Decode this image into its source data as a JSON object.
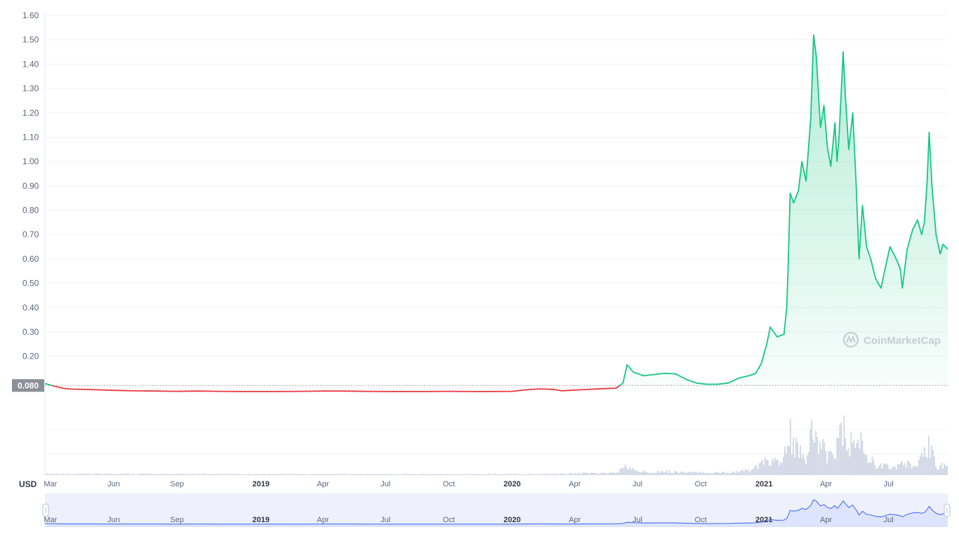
{
  "chart_data": {
    "type": "area",
    "currency_label": "USD",
    "baseline_value": 0.08,
    "baseline_label": "0.080",
    "watermark": "CoinMarketCap",
    "ylim": [
      0,
      1.6
    ],
    "y_ticks": [
      "0.20",
      "0.30",
      "0.40",
      "0.50",
      "0.60",
      "0.70",
      "0.80",
      "0.90",
      "1.00",
      "1.10",
      "1.20",
      "1.30",
      "1.40",
      "1.50",
      "1.60"
    ],
    "x_range": [
      "2018-02-21",
      "2021-09-25"
    ],
    "x_ticks": [
      {
        "date": "2018-03-01",
        "label": "Mar",
        "year": false
      },
      {
        "date": "2018-06-01",
        "label": "Jun",
        "year": false
      },
      {
        "date": "2018-09-01",
        "label": "Sep",
        "year": false
      },
      {
        "date": "2019-01-01",
        "label": "2019",
        "year": true
      },
      {
        "date": "2019-04-01",
        "label": "Apr",
        "year": false
      },
      {
        "date": "2019-07-01",
        "label": "Jul",
        "year": false
      },
      {
        "date": "2019-10-01",
        "label": "Oct",
        "year": false
      },
      {
        "date": "2020-01-01",
        "label": "2020",
        "year": true
      },
      {
        "date": "2020-04-01",
        "label": "Apr",
        "year": false
      },
      {
        "date": "2020-07-01",
        "label": "Jul",
        "year": false
      },
      {
        "date": "2020-10-01",
        "label": "Oct",
        "year": false
      },
      {
        "date": "2021-01-01",
        "label": "2021",
        "year": true
      },
      {
        "date": "2021-04-01",
        "label": "Apr",
        "year": false
      },
      {
        "date": "2021-07-01",
        "label": "Jul",
        "year": false
      }
    ],
    "colors": {
      "up": "#16c784",
      "down": "#ea3943",
      "volume": "#cfd6e4",
      "navigator_line": "#3861fb",
      "navigator_fill": "#dde4fd",
      "baseline_label_bg": "#8a8f98"
    },
    "series": [
      {
        "values": [
          [
            "2018-02-21",
            0.088
          ],
          [
            "2018-03-01",
            0.082
          ],
          [
            "2018-03-10",
            0.075
          ],
          [
            "2018-03-20",
            0.068
          ],
          [
            "2018-04-01",
            0.065
          ],
          [
            "2018-04-20",
            0.064
          ],
          [
            "2018-05-10",
            0.062
          ],
          [
            "2018-06-01",
            0.06
          ],
          [
            "2018-07-01",
            0.058
          ],
          [
            "2018-08-01",
            0.057
          ],
          [
            "2018-09-01",
            0.056
          ],
          [
            "2018-10-01",
            0.057
          ],
          [
            "2018-11-01",
            0.056
          ],
          [
            "2018-12-01",
            0.055
          ],
          [
            "2019-01-01",
            0.055
          ],
          [
            "2019-02-01",
            0.055
          ],
          [
            "2019-03-01",
            0.056
          ],
          [
            "2019-04-01",
            0.057
          ],
          [
            "2019-05-01",
            0.057
          ],
          [
            "2019-06-01",
            0.056
          ],
          [
            "2019-07-01",
            0.055
          ],
          [
            "2019-08-01",
            0.055
          ],
          [
            "2019-09-01",
            0.055
          ],
          [
            "2019-10-01",
            0.056
          ],
          [
            "2019-11-01",
            0.055
          ],
          [
            "2019-12-01",
            0.055
          ],
          [
            "2020-01-01",
            0.056
          ],
          [
            "2020-01-20",
            0.062
          ],
          [
            "2020-02-10",
            0.066
          ],
          [
            "2020-03-01",
            0.064
          ],
          [
            "2020-03-13",
            0.058
          ],
          [
            "2020-03-25",
            0.06
          ],
          [
            "2020-04-15",
            0.063
          ],
          [
            "2020-05-10",
            0.067
          ],
          [
            "2020-05-31",
            0.069
          ],
          [
            "2020-06-10",
            0.09
          ],
          [
            "2020-06-16",
            0.165
          ],
          [
            "2020-06-25",
            0.135
          ],
          [
            "2020-07-10",
            0.12
          ],
          [
            "2020-07-25",
            0.125
          ],
          [
            "2020-08-10",
            0.13
          ],
          [
            "2020-08-25",
            0.128
          ],
          [
            "2020-09-10",
            0.105
          ],
          [
            "2020-09-25",
            0.09
          ],
          [
            "2020-10-10",
            0.085
          ],
          [
            "2020-10-25",
            0.085
          ],
          [
            "2020-11-10",
            0.09
          ],
          [
            "2020-11-25",
            0.11
          ],
          [
            "2020-12-10",
            0.12
          ],
          [
            "2020-12-20",
            0.13
          ],
          [
            "2020-12-28",
            0.17
          ],
          [
            "2021-01-05",
            0.25
          ],
          [
            "2021-01-10",
            0.32
          ],
          [
            "2021-01-20",
            0.28
          ],
          [
            "2021-01-30",
            0.29
          ],
          [
            "2021-02-03",
            0.4
          ],
          [
            "2021-02-05",
            0.56
          ],
          [
            "2021-02-08",
            0.87
          ],
          [
            "2021-02-13",
            0.83
          ],
          [
            "2021-02-20",
            0.88
          ],
          [
            "2021-02-25",
            1.0
          ],
          [
            "2021-03-03",
            0.92
          ],
          [
            "2021-03-10",
            1.18
          ],
          [
            "2021-03-14",
            1.52
          ],
          [
            "2021-03-18",
            1.43
          ],
          [
            "2021-03-24",
            1.14
          ],
          [
            "2021-03-29",
            1.23
          ],
          [
            "2021-04-03",
            1.06
          ],
          [
            "2021-04-08",
            0.98
          ],
          [
            "2021-04-14",
            1.16
          ],
          [
            "2021-04-17",
            1.0
          ],
          [
            "2021-04-20",
            1.1
          ],
          [
            "2021-04-26",
            1.45
          ],
          [
            "2021-04-29",
            1.28
          ],
          [
            "2021-05-04",
            1.05
          ],
          [
            "2021-05-10",
            1.2
          ],
          [
            "2021-05-15",
            0.9
          ],
          [
            "2021-05-19",
            0.6
          ],
          [
            "2021-05-24",
            0.82
          ],
          [
            "2021-05-30",
            0.65
          ],
          [
            "2021-06-05",
            0.6
          ],
          [
            "2021-06-12",
            0.52
          ],
          [
            "2021-06-20",
            0.48
          ],
          [
            "2021-06-26",
            0.56
          ],
          [
            "2021-07-03",
            0.65
          ],
          [
            "2021-07-12",
            0.6
          ],
          [
            "2021-07-18",
            0.56
          ],
          [
            "2021-07-21",
            0.48
          ],
          [
            "2021-07-28",
            0.64
          ],
          [
            "2021-08-05",
            0.72
          ],
          [
            "2021-08-12",
            0.76
          ],
          [
            "2021-08-18",
            0.7
          ],
          [
            "2021-08-22",
            0.75
          ],
          [
            "2021-08-26",
            0.92
          ],
          [
            "2021-08-29",
            1.12
          ],
          [
            "2021-09-02",
            0.9
          ],
          [
            "2021-09-05",
            0.8
          ],
          [
            "2021-09-08",
            0.7
          ],
          [
            "2021-09-14",
            0.62
          ],
          [
            "2021-09-18",
            0.66
          ],
          [
            "2021-09-25",
            0.64
          ]
        ]
      }
    ],
    "volume": [
      [
        "2018-02-21",
        0.03
      ],
      [
        "2018-04-01",
        0.02
      ],
      [
        "2018-06-01",
        0.03
      ],
      [
        "2018-09-01",
        0.02
      ],
      [
        "2019-01-01",
        0.02
      ],
      [
        "2019-04-01",
        0.02
      ],
      [
        "2019-07-01",
        0.02
      ],
      [
        "2019-10-01",
        0.02
      ],
      [
        "2020-01-01",
        0.02
      ],
      [
        "2020-03-15",
        0.03
      ],
      [
        "2020-05-31",
        0.05
      ],
      [
        "2020-06-16",
        0.2
      ],
      [
        "2020-06-25",
        0.1
      ],
      [
        "2020-07-10",
        0.07
      ],
      [
        "2020-08-10",
        0.08
      ],
      [
        "2020-09-10",
        0.06
      ],
      [
        "2020-10-10",
        0.05
      ],
      [
        "2020-11-10",
        0.06
      ],
      [
        "2020-12-10",
        0.1
      ],
      [
        "2020-12-28",
        0.22
      ],
      [
        "2021-01-10",
        0.35
      ],
      [
        "2021-01-25",
        0.2
      ],
      [
        "2021-02-08",
        0.85
      ],
      [
        "2021-02-20",
        0.45
      ],
      [
        "2021-03-03",
        0.4
      ],
      [
        "2021-03-14",
        0.95
      ],
      [
        "2021-03-24",
        0.55
      ],
      [
        "2021-04-08",
        0.45
      ],
      [
        "2021-04-26",
        0.9
      ],
      [
        "2021-05-10",
        0.6
      ],
      [
        "2021-05-19",
        0.75
      ],
      [
        "2021-06-05",
        0.3
      ],
      [
        "2021-06-20",
        0.2
      ],
      [
        "2021-07-05",
        0.15
      ],
      [
        "2021-07-21",
        0.25
      ],
      [
        "2021-08-12",
        0.18
      ],
      [
        "2021-08-29",
        0.6
      ],
      [
        "2021-09-08",
        0.25
      ],
      [
        "2021-09-25",
        0.15
      ]
    ]
  }
}
